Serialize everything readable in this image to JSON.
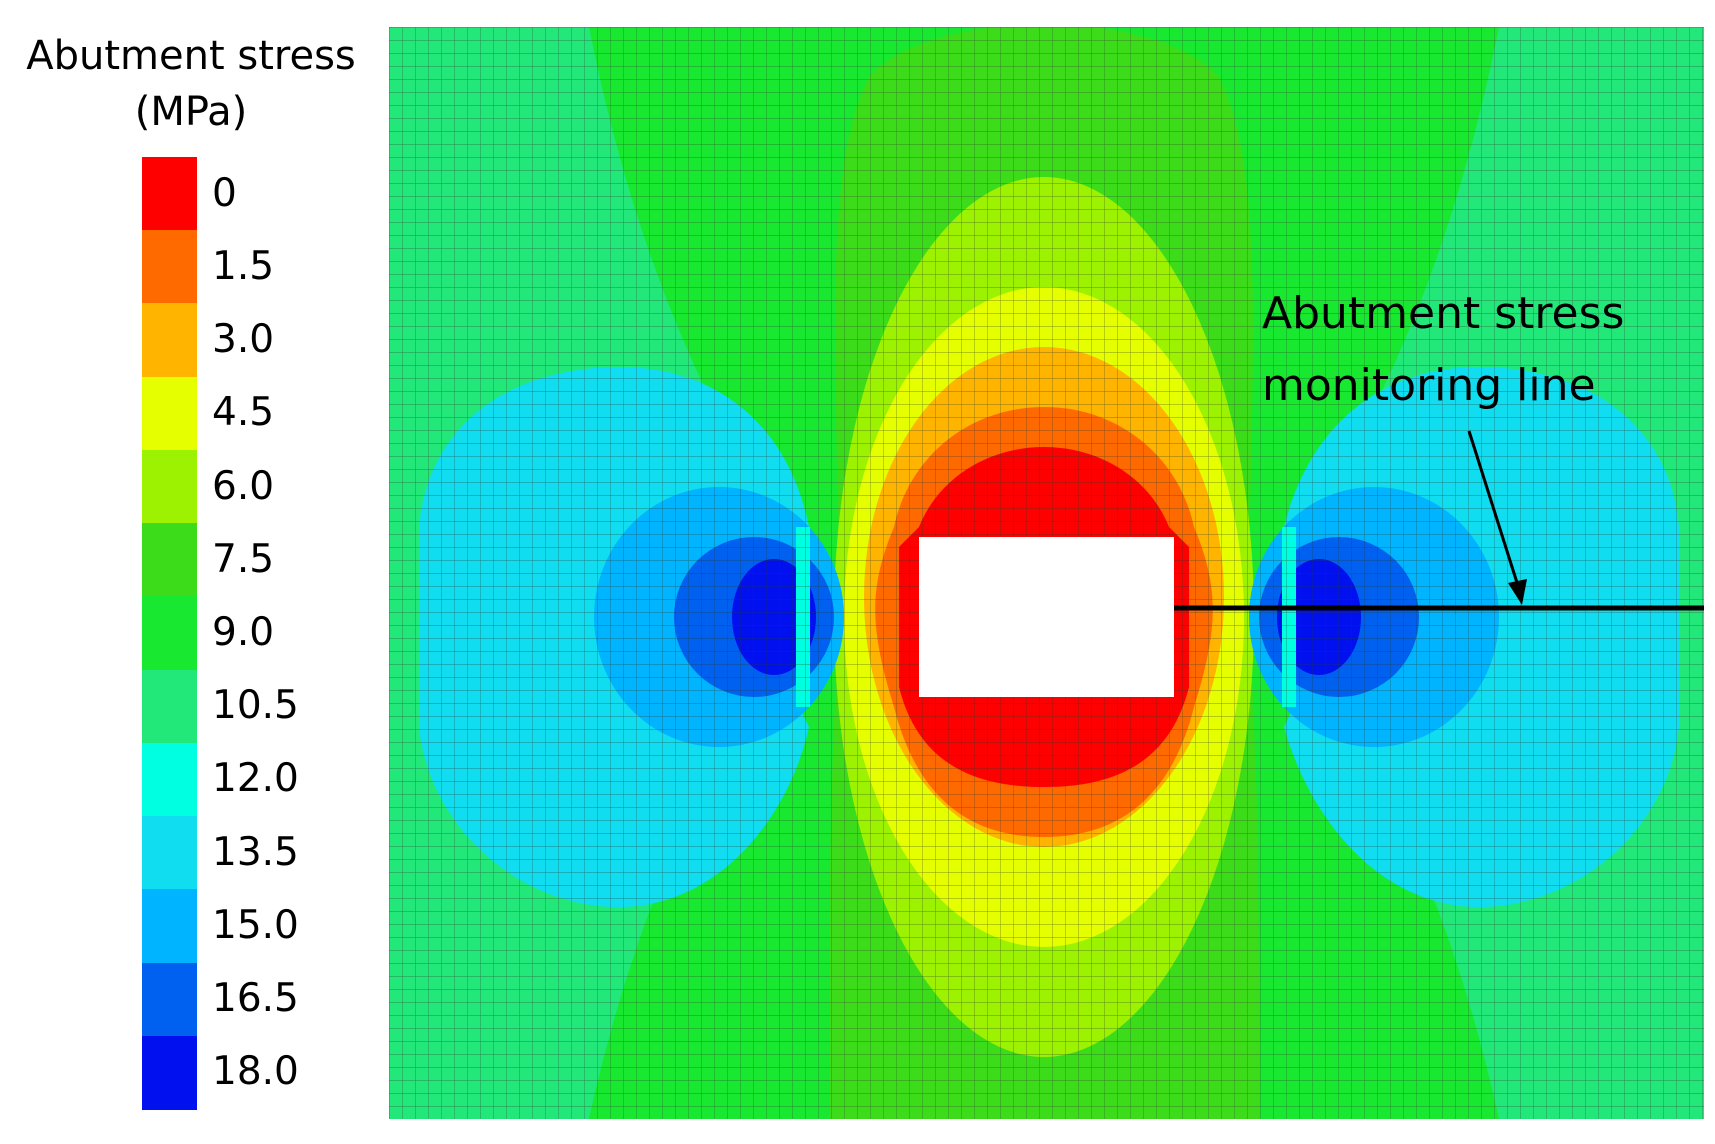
{
  "legend": {
    "title_line1": "Abutment stress",
    "title_line2": "(MPa)",
    "levels": [
      {
        "label": "0",
        "color": "#ff0000"
      },
      {
        "label": "1.5",
        "color": "#ff6a00"
      },
      {
        "label": "3.0",
        "color": "#ffb400"
      },
      {
        "label": "4.5",
        "color": "#e6ff00"
      },
      {
        "label": "6.0",
        "color": "#9cf200"
      },
      {
        "label": "7.5",
        "color": "#3ddc1a"
      },
      {
        "label": "9.0",
        "color": "#18e830"
      },
      {
        "label": "10.5",
        "color": "#22e87a"
      },
      {
        "label": "12.0",
        "color": "#00ffe0"
      },
      {
        "label": "13.5",
        "color": "#10ddf0"
      },
      {
        "label": "15.0",
        "color": "#00b4ff"
      },
      {
        "label": "16.5",
        "color": "#0060f0"
      },
      {
        "label": "18.0",
        "color": "#0010ee"
      }
    ]
  },
  "annotation": {
    "line1": "Abutment stress",
    "line2": "monitoring line"
  }
}
